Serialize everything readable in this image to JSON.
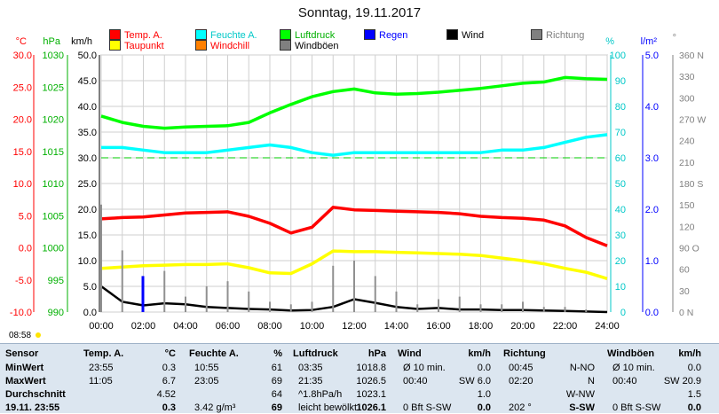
{
  "title": "Sonntag, 19.11.2017",
  "legend": [
    {
      "label": "Temp. A.",
      "color": "#ff0000",
      "row": 0,
      "col": 0
    },
    {
      "label": "Feuchte A.",
      "color": "#00ffff",
      "row": 0,
      "col": 1
    },
    {
      "label": "Luftdruck",
      "color": "#00ff00",
      "row": 0,
      "col": 2
    },
    {
      "label": "Regen",
      "color": "#0000ff",
      "row": 0,
      "col": 3
    },
    {
      "label": "Wind",
      "color": "#000000",
      "row": 0,
      "col": 4
    },
    {
      "label": "Richtung",
      "color": "#808080",
      "row": 0,
      "col": 5
    },
    {
      "label": "Taupunkt",
      "color": "#ffff00",
      "row": 1,
      "col": 0
    },
    {
      "label": "Windchill",
      "color": "#ff8000",
      "row": 1,
      "col": 1
    },
    {
      "label": "Windböen",
      "color": "#808080",
      "row": 1,
      "col": 2
    }
  ],
  "legend_text_colors": [
    "#ff0000",
    "#00c8c8",
    "#00b000",
    "#0000ff",
    "#000000",
    "#808080",
    "#ff0000",
    "#ff0000",
    "#000000"
  ],
  "axis_units": {
    "temp": "°C",
    "pressure": "hPa",
    "wind": "km/h",
    "humidity": "%",
    "rain": "l/m²",
    "dir": "°"
  },
  "axes": {
    "temp": [
      "30.0",
      "25.0",
      "20.0",
      "15.0",
      "10.0",
      "5.0",
      "0.0",
      "-5.0",
      "-10.0"
    ],
    "pressure": [
      "1030",
      "1025",
      "1020",
      "1015",
      "1010",
      "1005",
      "1000",
      "995",
      "990"
    ],
    "wind": [
      "50.0",
      "45.0",
      "40.0",
      "35.0",
      "30.0",
      "25.0",
      "20.0",
      "15.0",
      "10.0",
      "5.0",
      "0.0"
    ],
    "humidity": [
      "100",
      "90",
      "80",
      "70",
      "60",
      "50",
      "40",
      "30",
      "20",
      "10",
      "0"
    ],
    "rain": [
      "5.0",
      "4.0",
      "3.0",
      "2.0",
      "1.0",
      "0.0"
    ],
    "dir": [
      "360 N",
      "330",
      "300",
      "270 W",
      "240",
      "210",
      "180 S",
      "150",
      "120",
      "90 O",
      "60",
      "30",
      "0 N"
    ]
  },
  "time_ticks": [
    "00:00",
    "02:00",
    "04:00",
    "06:00",
    "08:00",
    "10:00",
    "12:00",
    "14:00",
    "16:00",
    "18:00",
    "20:00",
    "22:00",
    "24:00"
  ],
  "sunrise_label": "08:58",
  "chart_data": {
    "type": "line",
    "title": "Sonntag, 19.11.2017",
    "x": [
      "00:00",
      "01:00",
      "02:00",
      "03:00",
      "04:00",
      "05:00",
      "06:00",
      "07:00",
      "08:00",
      "09:00",
      "10:00",
      "11:00",
      "12:00",
      "13:00",
      "14:00",
      "15:00",
      "16:00",
      "17:00",
      "18:00",
      "19:00",
      "20:00",
      "21:00",
      "22:00",
      "23:00",
      "24:00"
    ],
    "xlim": [
      "00:00",
      "24:00"
    ],
    "y_left_wind_kmh": [
      0,
      50
    ],
    "series": [
      {
        "name": "Temp. A.",
        "axis": "temp_c",
        "values": [
          4.5,
          4.7,
          4.8,
          5.1,
          5.4,
          5.5,
          5.6,
          4.9,
          3.8,
          2.3,
          3.2,
          6.3,
          5.9,
          5.8,
          5.7,
          5.6,
          5.5,
          5.3,
          4.9,
          4.7,
          4.6,
          4.3,
          3.4,
          1.6,
          0.3
        ]
      },
      {
        "name": "Taupunkt",
        "axis": "temp_c",
        "values": [
          -3.2,
          -3.0,
          -2.8,
          -2.7,
          -2.6,
          -2.6,
          -2.5,
          -3.1,
          -3.9,
          -4.0,
          -2.5,
          -0.5,
          -0.6,
          -0.6,
          -0.7,
          -0.8,
          -0.9,
          -1.0,
          -1.2,
          -1.6,
          -2.0,
          -2.5,
          -3.2,
          -3.8,
          -4.8
        ]
      },
      {
        "name": "Feuchte A.",
        "axis": "humidity_pct",
        "values": [
          64,
          64,
          63,
          62,
          62,
          62,
          63,
          64,
          65,
          64,
          62,
          61,
          62,
          62,
          62,
          62,
          62,
          62,
          62,
          63,
          63,
          64,
          66,
          68,
          69
        ]
      },
      {
        "name": "Luftdruck",
        "axis": "pressure_hpa",
        "values": [
          1020.5,
          1019.5,
          1018.9,
          1018.6,
          1018.8,
          1018.9,
          1019.0,
          1019.5,
          1021.0,
          1022.3,
          1023.5,
          1024.3,
          1024.7,
          1024.1,
          1023.9,
          1024.0,
          1024.2,
          1024.5,
          1024.8,
          1025.2,
          1025.6,
          1025.8,
          1026.5,
          1026.3,
          1026.2
        ]
      },
      {
        "name": "Wind",
        "axis": "wind_kmh",
        "values": [
          5.0,
          2.0,
          1.3,
          1.7,
          1.5,
          1.0,
          0.8,
          0.6,
          0.5,
          0.3,
          0.4,
          1.0,
          2.5,
          1.8,
          1.0,
          0.6,
          0.8,
          0.5,
          0.5,
          0.4,
          0.4,
          0.3,
          0.2,
          0.1,
          0.0
        ]
      },
      {
        "name": "Windböen",
        "axis": "wind_kmh",
        "values": [
          20.9,
          12,
          5,
          8,
          3,
          5,
          6,
          4,
          2,
          1.5,
          2,
          9,
          10,
          7,
          4,
          1.5,
          2.5,
          3,
          1.5,
          1.5,
          2,
          1,
          1,
          0.5,
          0
        ]
      },
      {
        "name": "Regen",
        "axis": "rain_lm2",
        "values": [
          0,
          0,
          0.7,
          0,
          0,
          0,
          0,
          0,
          0,
          0,
          0,
          0,
          0,
          0,
          0,
          0,
          0,
          0,
          0,
          0,
          0,
          0,
          0,
          0,
          0
        ]
      }
    ],
    "reference_line": {
      "axis": "temp_c",
      "value": 14.0,
      "style": "dashed",
      "color": "#00cc00"
    },
    "grid": true
  },
  "panel": {
    "columns": [
      {
        "h1": "Sensor",
        "h2": ""
      },
      {
        "h1": "Temp. A.",
        "h2": "°C"
      },
      {
        "h1": "Feuchte A.",
        "h2": "%"
      },
      {
        "h1": "Luftdruck",
        "h2": "hPa"
      },
      {
        "h1": "Wind",
        "h2": "km/h"
      },
      {
        "h1": "Richtung",
        "h2": ""
      },
      {
        "h1": "Windböen",
        "h2": "km/h"
      }
    ],
    "rows": [
      {
        "label": "MinWert",
        "cells": [
          [
            "23:55",
            "0.3"
          ],
          [
            "10:55",
            "61"
          ],
          [
            "03:35",
            "1018.8"
          ],
          [
            "Ø 10 min.",
            "0.0"
          ],
          [
            "00:45",
            "N-NO"
          ],
          [
            "Ø 10 min.",
            "0.0"
          ]
        ]
      },
      {
        "label": "MaxWert",
        "cells": [
          [
            "11:05",
            "6.7"
          ],
          [
            "23:05",
            "69"
          ],
          [
            "21:35",
            "1026.5"
          ],
          [
            "00:40",
            "SW 6.0"
          ],
          [
            "02:20",
            "N"
          ],
          [
            "00:40",
            "SW 20.9"
          ]
        ]
      },
      {
        "label": "Durchschnitt",
        "cells": [
          [
            "",
            "4.52"
          ],
          [
            "",
            "64"
          ],
          [
            "^1.8hPa/h",
            "1023.1"
          ],
          [
            "",
            "1.0"
          ],
          [
            "",
            "W-NW"
          ],
          [
            "",
            "1.5"
          ]
        ]
      },
      {
        "label": "19.11. 23:55",
        "cells": [
          [
            "",
            "0.3"
          ],
          [
            "3.42 g/m³",
            "69"
          ],
          [
            "leicht bewölkt",
            "1026.1"
          ],
          [
            "0 Bft S-SW",
            "0.0"
          ],
          [
            "202 °",
            "S-SW"
          ],
          [
            "0 Bft S-SW",
            "0.0"
          ]
        ]
      }
    ]
  }
}
